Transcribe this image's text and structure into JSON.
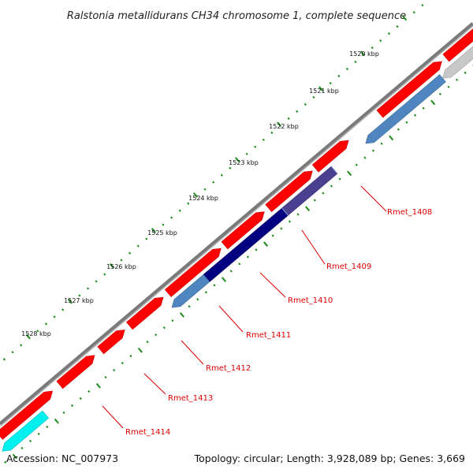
{
  "title": "Ralstonia metallidurans CH34 chromosome 1, complete sequence",
  "footer": {
    "accession": "Accession: NC_007973",
    "summary": "Topology: circular; Length: 3,928,089 bp; Genes: 3,669"
  },
  "kbp_labels": [
    "1520 kbp",
    "1521 kbp",
    "1522 kbp",
    "1523 kbp",
    "1524 kbp",
    "1525 kbp",
    "1526 kbp",
    "1527 kbp",
    "1528 kbp"
  ],
  "gene_labels": [
    "Rmet_1408",
    "Rmet_1409",
    "Rmet_1410",
    "Rmet_1411",
    "Rmet_1412",
    "Rmet_1413",
    "Rmet_1414"
  ],
  "colors": {
    "forward_cds": "#ff0000",
    "reverse_cds": "#4f86c0",
    "highlight_cds": "#000080",
    "purple_cds": "#4b3f8f",
    "pseudo": "#c8c8c8",
    "other": "#00f0f0",
    "backbone": "#8a8a8a",
    "ticks": "#1a8a1a",
    "label": "#e00000"
  }
}
